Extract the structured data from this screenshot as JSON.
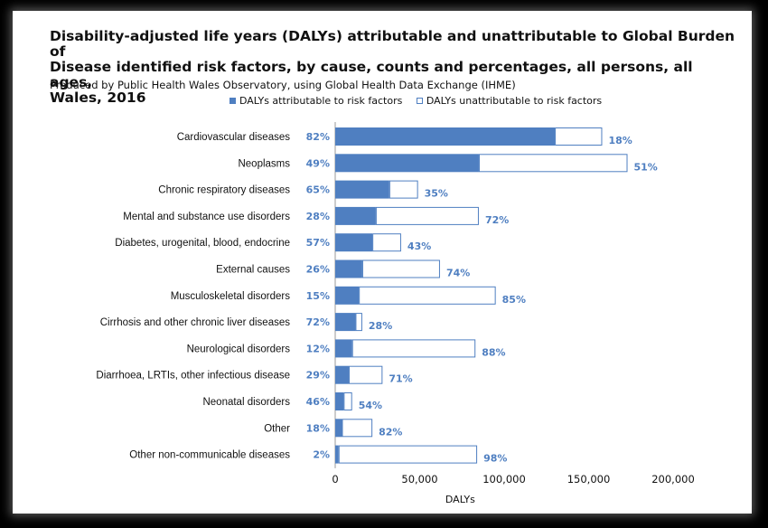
{
  "chart_data": {
    "type": "bar",
    "orientation": "horizontal",
    "stacked": true,
    "title": "Disability-adjusted life years (DALYs) attributable and unattributable to Global Burden of\nDisease  identified risk factors, by cause, counts and percentages, all persons, all ages,\nWales, 2016",
    "subtitle": "Produced by Public Health Wales Observatory, using Global Health Data Exchange (IHME)",
    "xlabel": "DALYs",
    "xlim": [
      0,
      200000
    ],
    "xticks": [
      "0",
      "50,000",
      "100,000",
      "150,000",
      "200,000"
    ],
    "legend_position": "top",
    "categories": [
      "Cardiovascular diseases",
      "Neoplasms",
      "Chronic respiratory diseases",
      "Mental and substance use disorders",
      "Diabetes, urogenital, blood, endocrine",
      "External causes",
      "Musculoskeletal disorders",
      "Cirrhosis and other chronic liver diseases",
      "Neurological disorders",
      "Diarrhoea, LRTIs, other infectious disease",
      "Neonatal disorders",
      "Other",
      "Other non-communicable diseases"
    ],
    "series": [
      {
        "name": "DALYs attributable to risk factors",
        "color": "#4f7fc1",
        "values": [
          130000,
          85000,
          32000,
          24000,
          22000,
          16000,
          14000,
          12000,
          10000,
          8000,
          5000,
          4000,
          2000
        ],
        "labels": [
          "82%",
          "49%",
          "65%",
          "28%",
          "57%",
          "26%",
          "15%",
          "72%",
          "12%",
          "29%",
          "46%",
          "18%",
          "2%"
        ]
      },
      {
        "name": "DALYs unattributable to risk factors",
        "color": "#ffffff",
        "values": [
          28000,
          88000,
          17000,
          61000,
          17000,
          46000,
          81000,
          4000,
          73000,
          20000,
          5000,
          18000,
          82000
        ],
        "labels": [
          "18%",
          "51%",
          "35%",
          "72%",
          "43%",
          "74%",
          "85%",
          "28%",
          "88%",
          "71%",
          "54%",
          "82%",
          "98%"
        ]
      }
    ]
  }
}
